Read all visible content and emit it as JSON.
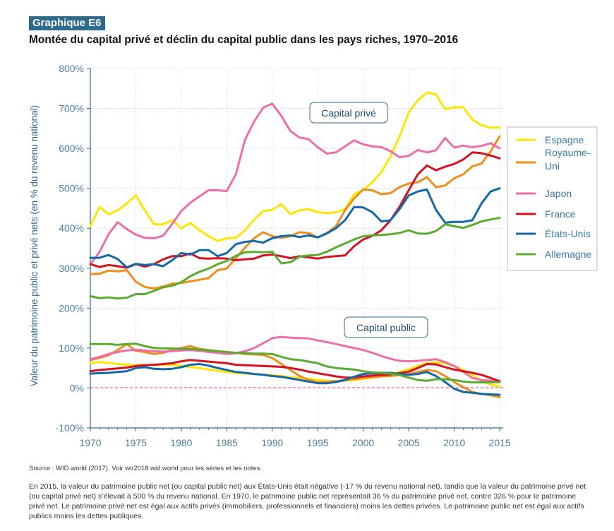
{
  "header": {
    "badge": "Graphique E6",
    "title": "Montée du capital privé et déclin du capital public dans les pays riches, 1970–2016"
  },
  "footer": {
    "source": "Source : WID.world (2017). Voir wir2018.wid.world pour les séries et les notes.",
    "note": "En 2015, la valeur du patrimoine public net (ou capital public net) aux États-Unis était négative (-17 % du revenu national net), tandis que la valeur du patrimoine privé net (ou capital privé net) s’élevait à 500 % du revenu national. En 1970, le patrimoine public net représentait 36 % du patrimoine privé net, contre 326 % pour le patrimoine privé net. Le patrimoine privé net est égal aux actifs privés (immobiliers, professionnels et financiers) moins les dettes privées. Le patrimoine public net est égal aux actifs publics moins les dettes publiques."
  },
  "chart_data": {
    "type": "line",
    "ylabel": "Valeur du patrimoine public et privé nets (en % du revenu national)",
    "xlabel": "",
    "xlim": [
      1970,
      2015
    ],
    "ylim": [
      -100,
      800
    ],
    "xticks": [
      "1970",
      "1975",
      "1980",
      "1985",
      "1990",
      "1995",
      "2000",
      "2005",
      "2010",
      "2015"
    ],
    "yticks": [
      "-100%",
      "0%",
      "100%",
      "200%",
      "300%",
      "400%",
      "500%",
      "600%",
      "700%",
      "800%"
    ],
    "annotations": [
      "Capital privé",
      "Capital public"
    ],
    "legend_position": "right",
    "grid": true,
    "x": [
      1970,
      1971,
      1972,
      1973,
      1974,
      1975,
      1976,
      1977,
      1978,
      1979,
      1980,
      1981,
      1982,
      1983,
      1984,
      1985,
      1986,
      1987,
      1988,
      1989,
      1990,
      1991,
      1992,
      1993,
      1994,
      1995,
      1996,
      1997,
      1998,
      1999,
      2000,
      2001,
      2002,
      2003,
      2004,
      2005,
      2006,
      2007,
      2008,
      2009,
      2010,
      2011,
      2012,
      2013,
      2014,
      2015
    ],
    "series": [
      {
        "name": "Espagne",
        "color": "#ffe500",
        "private": [
          405,
          453,
          435,
          445,
          462,
          482,
          445,
          410,
          410,
          420,
          400,
          413,
          395,
          380,
          368,
          375,
          376,
          395,
          422,
          443,
          446,
          460,
          435,
          445,
          448,
          440,
          438,
          440,
          448,
          485,
          496,
          515,
          540,
          580,
          630,
          690,
          720,
          740,
          735,
          698,
          703,
          703,
          672,
          658,
          652,
          652
        ],
        "public": [
          62,
          65,
          63,
          60,
          58,
          57,
          58,
          57,
          58,
          58,
          56,
          52,
          50,
          46,
          43,
          40,
          38,
          36,
          35,
          34,
          32,
          30,
          27,
          25,
          23,
          20,
          18,
          17,
          18,
          20,
          23,
          26,
          30,
          35,
          40,
          47,
          55,
          62,
          64,
          62,
          55,
          45,
          33,
          18,
          8,
          4
        ]
      },
      {
        "name": "Royaume-Uni",
        "color": "#f08d1c",
        "private": [
          285,
          286,
          294,
          292,
          295,
          266,
          253,
          249,
          254,
          261,
          263,
          267,
          271,
          275,
          295,
          299,
          325,
          351,
          375,
          390,
          380,
          376,
          380,
          390,
          388,
          377,
          388,
          405,
          445,
          475,
          497,
          495,
          485,
          488,
          503,
          512,
          515,
          528,
          503,
          507,
          525,
          535,
          555,
          562,
          592,
          630
        ],
        "public": [
          70,
          75,
          82,
          95,
          110,
          93,
          90,
          85,
          88,
          95,
          100,
          105,
          98,
          95,
          92,
          90,
          88,
          85,
          84,
          83,
          75,
          60,
          45,
          30,
          20,
          15,
          15,
          17,
          20,
          22,
          25,
          27,
          29,
          30,
          32,
          35,
          40,
          45,
          42,
          30,
          15,
          2,
          -10,
          -15,
          -18,
          -23
        ]
      },
      {
        "name": "Japon",
        "color": "#ec6fa9",
        "private": [
          310,
          340,
          385,
          415,
          398,
          384,
          376,
          375,
          381,
          411,
          443,
          464,
          480,
          495,
          495,
          493,
          535,
          621,
          667,
          702,
          712,
          681,
          643,
          627,
          623,
          603,
          587,
          590,
          605,
          620,
          610,
          605,
          603,
          593,
          578,
          581,
          596,
          590,
          595,
          626,
          602,
          607,
          603,
          606,
          613,
          600
        ],
        "public": [
          72,
          78,
          85,
          90,
          94,
          96,
          94,
          92,
          91,
          92,
          94,
          95,
          93,
          90,
          88,
          85,
          87,
          92,
          100,
          112,
          125,
          128,
          126,
          125,
          124,
          119,
          115,
          110,
          105,
          100,
          95,
          88,
          80,
          73,
          68,
          67,
          68,
          70,
          72,
          65,
          55,
          40,
          25,
          20,
          18,
          16
        ]
      },
      {
        "name": "France",
        "color": "#d5121f",
        "private": [
          310,
          303,
          308,
          305,
          301,
          310,
          304,
          310,
          322,
          330,
          330,
          337,
          325,
          324,
          325,
          324,
          320,
          322,
          324,
          332,
          334,
          330,
          325,
          330,
          327,
          324,
          328,
          330,
          332,
          355,
          372,
          381,
          395,
          420,
          454,
          495,
          535,
          557,
          545,
          554,
          561,
          572,
          590,
          588,
          582,
          575
        ],
        "public": [
          42,
          45,
          47,
          49,
          51,
          55,
          57,
          58,
          60,
          62,
          67,
          70,
          68,
          66,
          64,
          62,
          58,
          57,
          56,
          55,
          54,
          53,
          50,
          46,
          41,
          37,
          33,
          29,
          26,
          26,
          29,
          31,
          33,
          34,
          37,
          41,
          50,
          60,
          59,
          52,
          46,
          42,
          38,
          33,
          25,
          17
        ]
      },
      {
        "name": "États-Unis",
        "color": "#1369a8",
        "private": [
          326,
          326,
          333,
          323,
          302,
          311,
          308,
          310,
          305,
          320,
          338,
          334,
          345,
          345,
          330,
          338,
          360,
          366,
          368,
          364,
          375,
          380,
          382,
          378,
          382,
          377,
          387,
          400,
          420,
          453,
          452,
          440,
          417,
          420,
          448,
          482,
          492,
          497,
          446,
          414,
          416,
          416,
          420,
          462,
          492,
          500
        ],
        "public": [
          36,
          37,
          38,
          40,
          42,
          50,
          52,
          48,
          47,
          48,
          52,
          58,
          60,
          56,
          50,
          45,
          40,
          38,
          35,
          33,
          30,
          28,
          24,
          20,
          16,
          12,
          12,
          15,
          20,
          28,
          35,
          37,
          38,
          38,
          35,
          33,
          35,
          40,
          30,
          15,
          -2,
          -10,
          -12,
          -15,
          -16,
          -17
        ]
      },
      {
        "name": "Allemagne",
        "color": "#5bab32",
        "private": [
          230,
          225,
          227,
          224,
          226,
          235,
          235,
          243,
          252,
          256,
          265,
          280,
          291,
          299,
          310,
          318,
          331,
          340,
          341,
          340,
          341,
          312,
          315,
          329,
          332,
          333,
          341,
          352,
          362,
          372,
          380,
          382,
          383,
          385,
          388,
          395,
          387,
          386,
          393,
          410,
          405,
          401,
          408,
          417,
          422,
          426
        ],
        "public": [
          110,
          110,
          110,
          108,
          110,
          111,
          105,
          100,
          99,
          99,
          98,
          98,
          96,
          94,
          92,
          90,
          88,
          87,
          86,
          86,
          85,
          78,
          72,
          70,
          66,
          62,
          54,
          50,
          48,
          46,
          42,
          39,
          38,
          36,
          32,
          26,
          20,
          18,
          22,
          22,
          20,
          16,
          14,
          14,
          14,
          15
        ]
      }
    ]
  }
}
